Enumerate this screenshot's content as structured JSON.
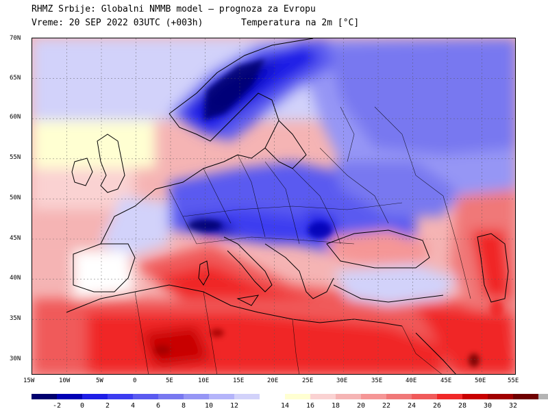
{
  "header": {
    "line1": "RHMZ Srbije: Globalni NMMB model — prognoza za Evropu",
    "line2": "Vreme: 20 SEP 2022 03UTC (+003h)",
    "field": "Temperatura na 2m [°C]"
  },
  "map": {
    "lat_labels": [
      "70N",
      "65N",
      "60N",
      "55N",
      "50N",
      "45N",
      "40N",
      "35N",
      "30N"
    ],
    "lon_labels": [
      "15W",
      "10W",
      "5W",
      "0",
      "5E",
      "10E",
      "15E",
      "20E",
      "25E",
      "30E",
      "35E",
      "40E",
      "45E",
      "50E",
      "55E"
    ],
    "extent": {
      "lon_min": -15,
      "lon_max": 55,
      "lat_min": 28,
      "lat_max": 70
    }
  },
  "legend": {
    "swatches": [
      {
        "color": "#00006e"
      },
      {
        "color": "#0000b4"
      },
      {
        "color": "#1e1ee6"
      },
      {
        "color": "#3c3cf0"
      },
      {
        "color": "#5a5af0"
      },
      {
        "color": "#7878f0"
      },
      {
        "color": "#9696f5"
      },
      {
        "color": "#b4b4fa"
      },
      {
        "color": "#d2d2fa"
      },
      {
        "color": "#ffffff"
      },
      {
        "color": "#ffffd2"
      },
      {
        "color": "#fad2d2"
      },
      {
        "color": "#f5b4b4"
      },
      {
        "color": "#f59696"
      },
      {
        "color": "#f07878"
      },
      {
        "color": "#f05a5a"
      },
      {
        "color": "#f02828"
      },
      {
        "color": "#c80000"
      },
      {
        "color": "#a00000"
      },
      {
        "color": "#6e0000"
      },
      {
        "color": "#b4b4b4"
      }
    ],
    "labels": [
      "-2",
      "0",
      "2",
      "4",
      "6",
      "8",
      "10",
      "12",
      "14",
      "16",
      "18",
      "20",
      "22",
      "24",
      "26",
      "28",
      "30",
      "32"
    ]
  }
}
